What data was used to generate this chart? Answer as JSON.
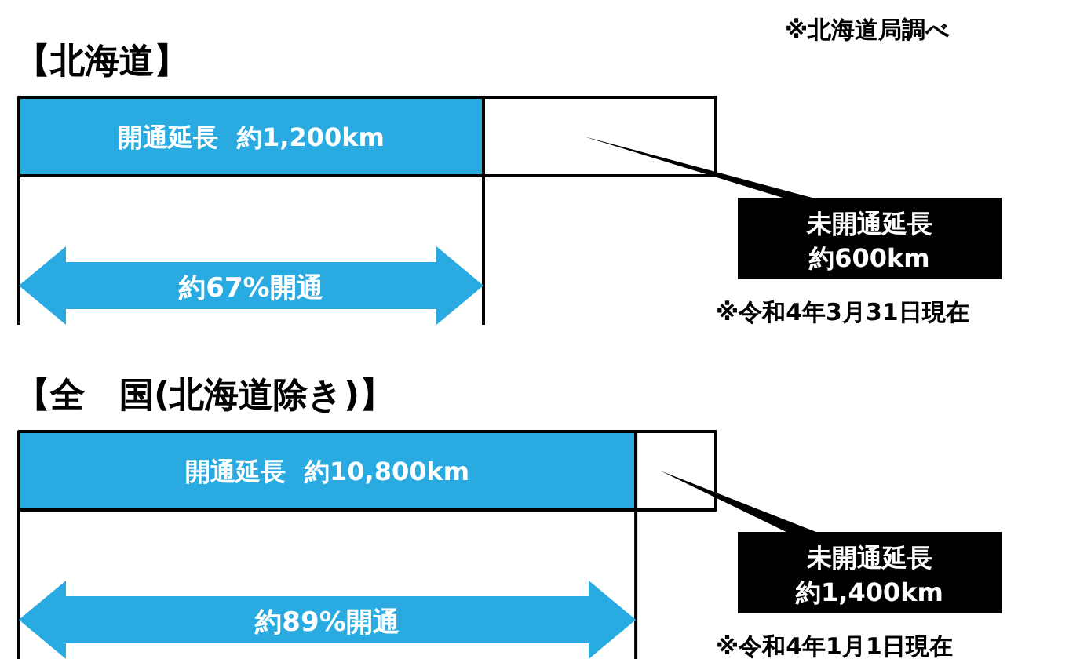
{
  "chart_data": [
    {
      "type": "bar",
      "orientation": "horizontal",
      "stacked": true,
      "title": "【北海道】",
      "categories": [
        null
      ],
      "series": [
        {
          "name": "開通延長",
          "color": "#29abe2",
          "values": [
            1200
          ],
          "value_labels": [
            "約1,200km"
          ]
        },
        {
          "name": "未開通延長",
          "color": "#ffffff",
          "values": [
            600
          ]
        }
      ],
      "annotations": [
        "約67%開通",
        "※令和4年3月31日現在",
        "約600km",
        "※北海道局調べ"
      ]
    },
    {
      "type": "bar",
      "orientation": "horizontal",
      "stacked": true,
      "title": "【全　国(北海道除き)】",
      "categories": [
        null
      ],
      "series": [
        {
          "name": "開通延長",
          "color": "#29abe2",
          "values": [
            10800
          ],
          "value_labels": [
            "約10,800km"
          ]
        },
        {
          "name": "未開通延長",
          "color": "#ffffff",
          "values": [
            1400
          ]
        }
      ],
      "annotations": [
        "約89%開通",
        "※令和4年1月1日現在",
        "約1,400km"
      ]
    }
  ]
}
